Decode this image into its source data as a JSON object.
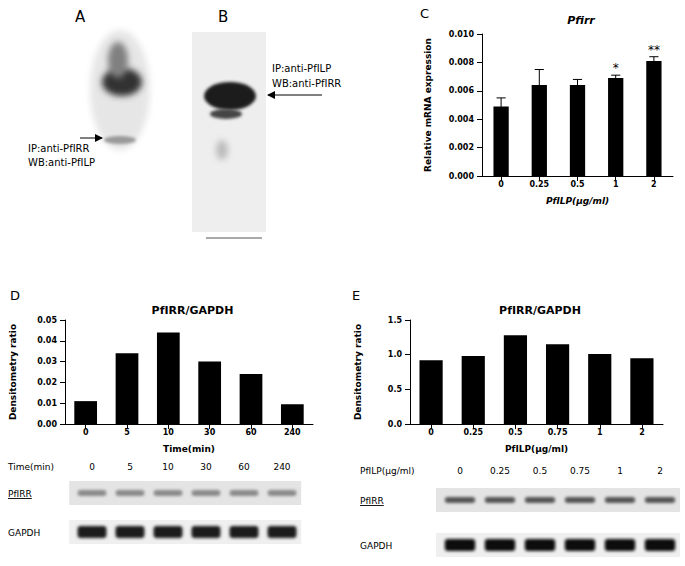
{
  "chart_data": [
    {
      "panel": "C",
      "type": "bar",
      "title": "Pfirr",
      "categories": [
        "0",
        "0.25",
        "0.5",
        "1",
        "2"
      ],
      "values": [
        0.0049,
        0.0064,
        0.0064,
        0.0069,
        0.0081
      ],
      "errors": [
        0.0006,
        0.0011,
        0.0004,
        0.0002,
        0.0003
      ],
      "annotations": [
        {
          "category": "1",
          "text": "*"
        },
        {
          "category": "2",
          "text": "**"
        }
      ],
      "color": "#000000",
      "xlabel": "PfILP(μg/ml)",
      "ylabel": "Relative mRNA expression",
      "ylim": [
        0,
        0.01
      ],
      "yticks": [
        {
          "value": 0,
          "label": "0.000"
        },
        0.002,
        0.004,
        0.006,
        0.008,
        {
          "value": 0.01,
          "label": "0.010"
        }
      ],
      "grid": false
    },
    {
      "panel": "D",
      "type": "bar",
      "title": "PfIRR/GAPDH",
      "categories": [
        "0",
        "5",
        "10",
        "30",
        "60",
        "240"
      ],
      "values": [
        0.011,
        0.034,
        0.044,
        0.03,
        0.024,
        0.0095
      ],
      "color": "#000000",
      "xlabel": "Time(min)",
      "ylabel": "Densitometry ratio",
      "ylim": [
        0,
        0.05
      ],
      "yticks": [
        {
          "value": 0,
          "label": "0.00"
        },
        0.01,
        0.02,
        0.03,
        0.04,
        0.05
      ],
      "grid": false
    },
    {
      "panel": "E",
      "type": "bar",
      "title": "PfIRR/GAPDH",
      "categories": [
        "0",
        "0.25",
        "0.5",
        "0.75",
        "1",
        "2"
      ],
      "values": [
        0.92,
        0.98,
        1.28,
        1.15,
        1.01,
        0.95
      ],
      "color": "#000000",
      "xlabel": "PfILP(μg/ml)",
      "ylabel": "Densitometry ratio",
      "ylim": [
        0,
        1.5
      ],
      "yticks": [
        {
          "value": 0,
          "label": "0.0"
        },
        0.5,
        {
          "value": 1,
          "label": "1.0"
        },
        1.5
      ],
      "grid": false
    }
  ],
  "blots": [
    {
      "panel": "A",
      "labels": [
        "IP:anti-PfIRR",
        "WB:anti-PfILP"
      ]
    },
    {
      "panel": "B",
      "labels": [
        "IP:anti-PfILP",
        "WB:anti-PfIRR"
      ]
    },
    {
      "panel": "D",
      "header": "Time(min)",
      "lanes": [
        "0",
        "5",
        "10",
        "30",
        "60",
        "240"
      ],
      "rows": [
        "PfIRR",
        "GAPDH"
      ]
    },
    {
      "panel": "E",
      "header": "PfILP(μg/ml)",
      "lanes": [
        "0",
        "0.25",
        "0.5",
        "0.75",
        "1",
        "2"
      ],
      "rows": [
        "PfIRR",
        "GAPDH"
      ]
    }
  ]
}
